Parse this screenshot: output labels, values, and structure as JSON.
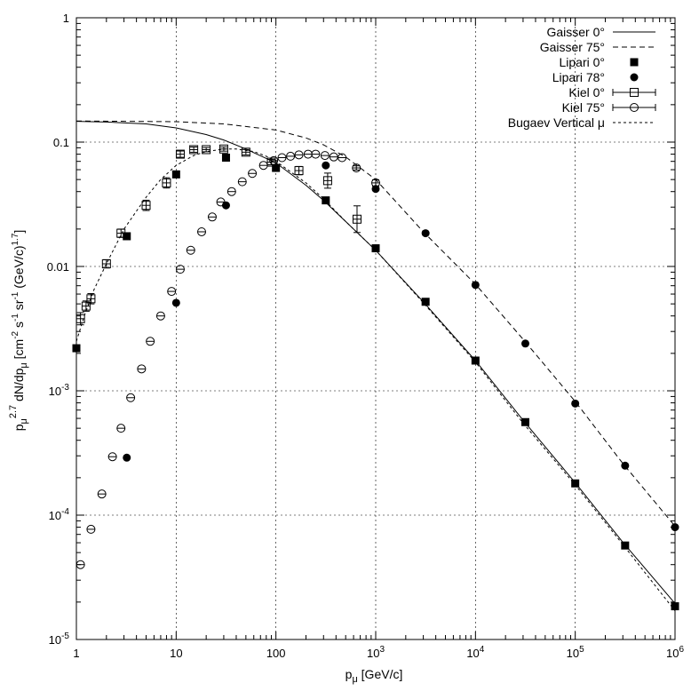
{
  "chart_data": {
    "type": "scatter",
    "title": "",
    "xlabel": {
      "main": "p",
      "sub": "μ",
      "rest": " [GeV/c]"
    },
    "ylabel": {
      "p": "p",
      "p_sub": "μ",
      "exp": "2.7",
      "mid": " dN/dp",
      "mid_sub": "μ",
      "bracket": " [cm",
      "e1": "-2",
      "s": " s",
      "e2": "-1",
      "sr": " sr",
      "e3": "-1",
      "gev": " (GeV/c)",
      "e4": "1.7",
      "close": "]"
    },
    "xscale": "log",
    "yscale": "log",
    "xlim": [
      1,
      1000000
    ],
    "ylim": [
      1e-05,
      1
    ],
    "grid": true,
    "legend_position": "top-right",
    "x_ticks": [
      {
        "v": 1,
        "label": "1"
      },
      {
        "v": 10,
        "label": "10"
      },
      {
        "v": 100,
        "label": "100"
      },
      {
        "v": 1000,
        "label": "10",
        "exp": "3"
      },
      {
        "v": 10000,
        "label": "10",
        "exp": "4"
      },
      {
        "v": 100000,
        "label": "10",
        "exp": "5"
      },
      {
        "v": 1000000,
        "label": "10",
        "exp": "6"
      }
    ],
    "y_ticks": [
      {
        "v": 1,
        "label": "1"
      },
      {
        "v": 0.1,
        "label": "0.1"
      },
      {
        "v": 0.01,
        "label": "0.01"
      },
      {
        "v": 0.001,
        "label": "10",
        "exp": "-3"
      },
      {
        "v": 0.0001,
        "label": "10",
        "exp": "-4"
      },
      {
        "v": 1e-05,
        "label": "10",
        "exp": "-5"
      }
    ],
    "series": [
      {
        "name": "Gaisser 0°",
        "kind": "line",
        "dash": "solid",
        "x": [
          1,
          2,
          5,
          10,
          20,
          30,
          50,
          100,
          200,
          300,
          500,
          1000,
          3000,
          10000,
          30000,
          100000,
          300000,
          1000000
        ],
        "y": [
          0.147,
          0.145,
          0.14,
          0.13,
          0.115,
          0.104,
          0.088,
          0.068,
          0.045,
          0.034,
          0.023,
          0.0135,
          0.0052,
          0.00175,
          0.00058,
          0.000182,
          6.05e-05,
          1.95e-05
        ]
      },
      {
        "name": "Gaisser 75°",
        "kind": "line",
        "dash": "6,4",
        "x": [
          1,
          10,
          30,
          100,
          200,
          300,
          500,
          1000,
          3000,
          10000,
          30000,
          100000,
          300000,
          1000000
        ],
        "y": [
          0.148,
          0.146,
          0.14,
          0.125,
          0.108,
          0.095,
          0.076,
          0.05,
          0.019,
          0.0072,
          0.0026,
          0.00082,
          0.00026,
          8.15e-05
        ]
      },
      {
        "name": "Lipari 0°",
        "kind": "marker",
        "marker": "filled-square",
        "x": [
          1,
          3.2,
          10,
          31.6,
          100,
          316,
          1000,
          3162,
          10000,
          31623,
          100000,
          316228,
          1000000
        ],
        "y": [
          0.0022,
          0.0175,
          0.055,
          0.075,
          0.062,
          0.034,
          0.014,
          0.0052,
          0.00175,
          0.00056,
          0.00018,
          5.7e-05,
          1.85e-05
        ]
      },
      {
        "name": "Lipari 78°",
        "kind": "marker",
        "marker": "filled-circle",
        "x": [
          3.2,
          10,
          31.6,
          316,
          1000,
          3162,
          10000,
          31623,
          100000,
          316228,
          1000000
        ],
        "y": [
          0.00029,
          0.0051,
          0.031,
          0.065,
          0.042,
          0.0185,
          0.0071,
          0.0024,
          0.00079,
          0.00025,
          8e-05
        ]
      },
      {
        "name": "Kiel 0°",
        "kind": "errorbar",
        "marker": "open-square",
        "x": [
          1.1,
          1.25,
          1.4,
          2,
          2.8,
          5,
          8,
          11,
          15,
          20,
          30,
          50,
          90,
          170,
          330,
          650
        ],
        "y": [
          0.0038,
          0.0048,
          0.0055,
          0.0105,
          0.0185,
          0.031,
          0.047,
          0.08,
          0.087,
          0.087,
          0.088,
          0.083,
          0.069,
          0.059,
          0.049,
          0.024
        ],
        "err": [
          0.12,
          0.1,
          0.1,
          0.08,
          0.08,
          0.1,
          0.1,
          0.06,
          0.05,
          0.04,
          0.04,
          0.05,
          0.05,
          0.08,
          0.15,
          0.28
        ]
      },
      {
        "name": "Kiel 75°",
        "kind": "errorbar",
        "marker": "open-circle",
        "x": [
          1.1,
          1.4,
          1.8,
          2.3,
          2.8,
          3.5,
          4.5,
          5.5,
          7,
          9,
          11,
          14,
          18,
          23,
          28,
          36,
          46,
          58,
          75,
          95,
          115,
          140,
          170,
          210,
          250,
          310,
          380,
          460,
          640,
          1000
        ],
        "y": [
          4e-05,
          7.7e-05,
          0.000148,
          0.000295,
          0.0005,
          0.00088,
          0.0015,
          0.0025,
          0.004,
          0.0063,
          0.0095,
          0.0135,
          0.019,
          0.025,
          0.033,
          0.04,
          0.048,
          0.056,
          0.065,
          0.071,
          0.075,
          0.077,
          0.079,
          0.08,
          0.08,
          0.078,
          0.076,
          0.075,
          0.062,
          0.047
        ],
        "err": [
          0,
          0,
          0,
          0,
          0,
          0,
          0,
          0,
          0,
          0,
          0,
          0,
          0,
          0,
          0,
          0,
          0,
          0,
          0,
          0,
          0,
          0,
          0,
          0,
          0,
          0,
          0,
          0,
          0.04,
          0.06
        ]
      },
      {
        "name": "Bugaev Vertical μ",
        "kind": "line",
        "dash": "3,3",
        "x": [
          1,
          1.2,
          1.5,
          2,
          3,
          5,
          7,
          10,
          15,
          20,
          30,
          40,
          60,
          80,
          100,
          200,
          300,
          500,
          1000,
          3000,
          10000,
          30000,
          100000,
          300000,
          1000000
        ],
        "y": [
          0.0025,
          0.004,
          0.0065,
          0.0105,
          0.02,
          0.036,
          0.05,
          0.065,
          0.078,
          0.084,
          0.088,
          0.088,
          0.084,
          0.077,
          0.07,
          0.047,
          0.035,
          0.023,
          0.0135,
          0.0051,
          0.0017,
          0.00055,
          0.000175,
          5.8e-05,
          1.7e-05
        ]
      }
    ]
  }
}
